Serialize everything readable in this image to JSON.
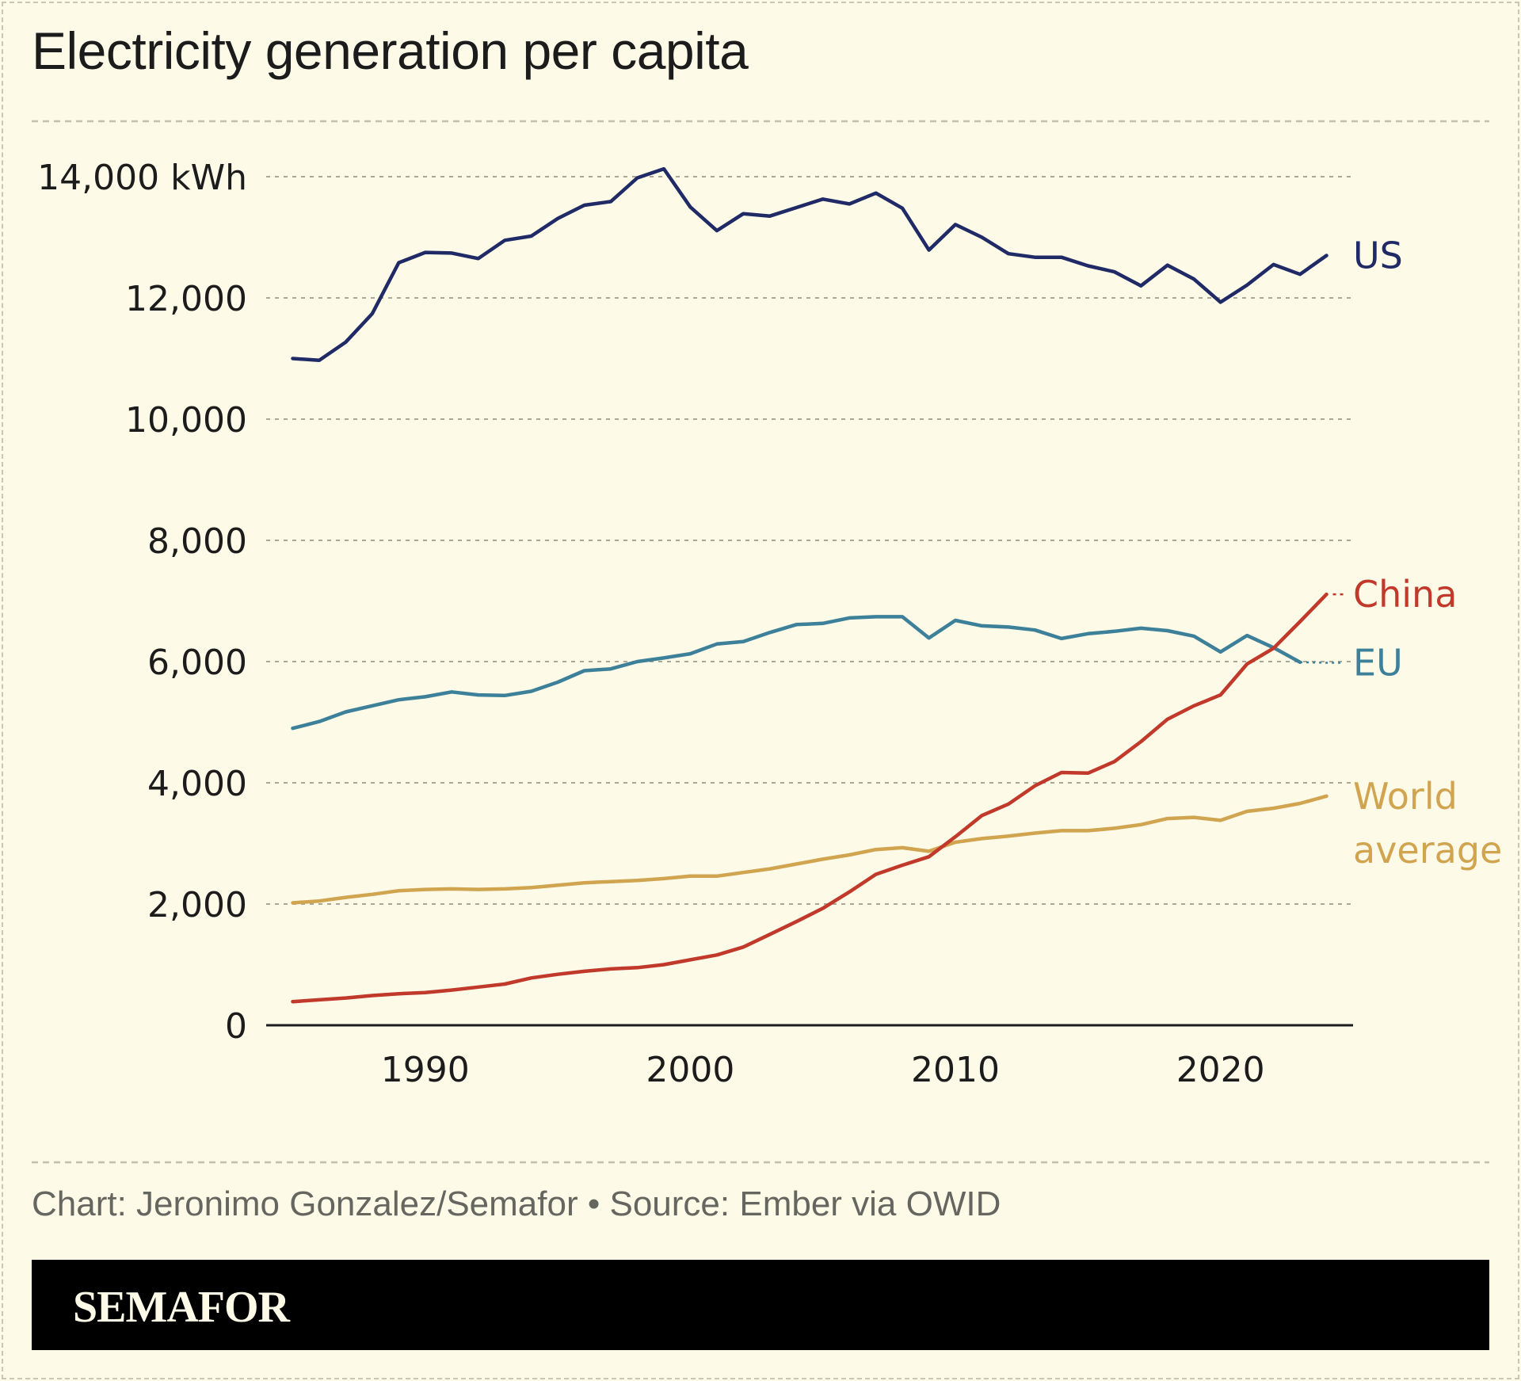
{
  "title": "Electricity generation per capita",
  "caption": "Chart: Jeronimo Gonzalez/Semafor • Source: Ember via OWID",
  "brand": "SEMAFOR",
  "colors": {
    "background": "#fdfae7",
    "us": "#1f2a66",
    "eu": "#3d8099",
    "china": "#c0392b",
    "world": "#d1a450"
  },
  "chart_data": {
    "type": "line",
    "title": "Electricity generation per capita",
    "xlabel": "",
    "ylabel": "kWh",
    "x": [
      1985,
      1986,
      1987,
      1988,
      1989,
      1990,
      1991,
      1992,
      1993,
      1994,
      1995,
      1996,
      1997,
      1998,
      1999,
      2000,
      2001,
      2002,
      2003,
      2004,
      2005,
      2006,
      2007,
      2008,
      2009,
      2010,
      2011,
      2012,
      2013,
      2014,
      2015,
      2016,
      2017,
      2018,
      2019,
      2020,
      2021,
      2022,
      2023,
      2024
    ],
    "xlim": [
      1984,
      2025
    ],
    "ylim": [
      0,
      14000
    ],
    "x_ticks": [
      1990,
      2000,
      2010,
      2020
    ],
    "x_tick_labels": [
      "1990",
      "2000",
      "2010",
      "2020"
    ],
    "y_ticks": [
      0,
      2000,
      4000,
      6000,
      8000,
      10000,
      12000,
      14000
    ],
    "y_tick_labels": [
      "0",
      "2,000",
      "4,000",
      "6,000",
      "8,000",
      "10,000",
      "12,000",
      "14,000 kWh"
    ],
    "grid": true,
    "series": [
      {
        "name": "US",
        "label": "US",
        "color": "#1f2a66",
        "values": [
          11000,
          10970,
          11270,
          11740,
          12580,
          12750,
          12740,
          12650,
          12950,
          13020,
          13310,
          13530,
          13590,
          13980,
          14130,
          13500,
          13110,
          13390,
          13350,
          13490,
          13630,
          13550,
          13730,
          13480,
          12790,
          13210,
          13000,
          12730,
          12670,
          12670,
          12530,
          12430,
          12200,
          12540,
          12310,
          11930,
          12210,
          12550,
          12390,
          12700
        ]
      },
      {
        "name": "EU",
        "label": "EU",
        "color": "#3d8099",
        "values": [
          4900,
          5010,
          5170,
          5270,
          5370,
          5420,
          5500,
          5450,
          5440,
          5510,
          5660,
          5850,
          5880,
          6000,
          6060,
          6130,
          6290,
          6330,
          6480,
          6610,
          6630,
          6720,
          6740,
          6740,
          6390,
          6680,
          6590,
          6570,
          6520,
          6380,
          6460,
          6500,
          6550,
          6510,
          6420,
          6160,
          6430,
          6230,
          5990,
          5980
        ],
        "dotted_from_index": 38
      },
      {
        "name": "China",
        "label": "China",
        "color": "#c0392b",
        "values": [
          390,
          420,
          450,
          490,
          520,
          540,
          580,
          630,
          680,
          780,
          840,
          890,
          930,
          950,
          1000,
          1080,
          1160,
          1290,
          1500,
          1710,
          1930,
          2200,
          2490,
          2640,
          2780,
          3110,
          3460,
          3650,
          3950,
          4170,
          4160,
          4350,
          4680,
          5050,
          5270,
          5450,
          5960,
          6220,
          6660,
          7110
        ]
      },
      {
        "name": "World average",
        "label_lines": [
          "World",
          "average"
        ],
        "color": "#d1a450",
        "values": [
          2020,
          2050,
          2110,
          2160,
          2220,
          2240,
          2250,
          2240,
          2250,
          2270,
          2310,
          2350,
          2370,
          2390,
          2420,
          2460,
          2460,
          2520,
          2580,
          2660,
          2740,
          2810,
          2900,
          2930,
          2870,
          3020,
          3080,
          3120,
          3170,
          3210,
          3210,
          3250,
          3310,
          3410,
          3430,
          3380,
          3530,
          3580,
          3660,
          3780
        ]
      }
    ]
  }
}
